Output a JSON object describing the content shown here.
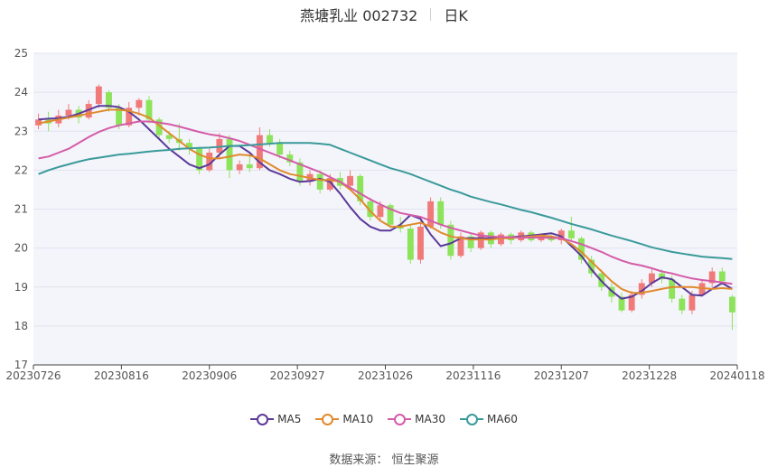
{
  "header": {
    "title": "燕塘乳业 002732",
    "period": "日K"
  },
  "legend": {
    "items": [
      {
        "label": "MA5",
        "color": "#5b3a9a"
      },
      {
        "label": "MA10",
        "color": "#e08a2c"
      },
      {
        "label": "MA30",
        "color": "#d45ca8"
      },
      {
        "label": "MA60",
        "color": "#3a9a9a"
      }
    ]
  },
  "footer": {
    "source": "数据来源：  恒生聚源"
  },
  "colors": {
    "up": "#f07a7a",
    "down": "#8de35a",
    "plot_bg": "#f4f5fb",
    "grid": "#e0e3ee"
  },
  "chart_data": {
    "type": "candlestick",
    "ylim": [
      17,
      25
    ],
    "yticks": [
      "25",
      "24",
      "23",
      "22",
      "21",
      "20",
      "19",
      "18",
      "17"
    ],
    "xticks": [
      "20230726",
      "20230816",
      "20230906",
      "20230927",
      "20231026",
      "20231116",
      "20231207",
      "20231228",
      "20240118"
    ],
    "ma_series": [
      {
        "name": "MA5",
        "values": [
          23.3,
          23.32,
          23.33,
          23.37,
          23.45,
          23.55,
          23.65,
          23.65,
          23.62,
          23.5,
          23.3,
          23.05,
          22.8,
          22.55,
          22.35,
          22.15,
          22.05,
          22.15,
          22.4,
          22.62,
          22.62,
          22.45,
          22.2,
          22.0,
          21.9,
          21.78,
          21.7,
          21.72,
          21.78,
          21.7,
          21.4,
          21.05,
          20.75,
          20.55,
          20.45,
          20.45,
          20.6,
          20.85,
          20.75,
          20.35,
          20.05,
          20.12,
          20.25,
          20.25,
          20.25,
          20.25,
          20.28,
          20.28,
          20.3,
          20.32,
          20.35,
          20.38,
          20.3,
          20.05,
          19.8,
          19.45,
          19.15,
          18.9,
          18.7,
          18.75,
          18.9,
          19.1,
          19.25,
          19.2,
          19.0,
          18.8,
          18.78,
          18.95,
          19.1,
          18.95
        ]
      },
      {
        "name": "MA10",
        "values": [
          23.2,
          23.25,
          23.3,
          23.35,
          23.4,
          23.45,
          23.5,
          23.55,
          23.55,
          23.52,
          23.45,
          23.35,
          23.15,
          22.95,
          22.75,
          22.55,
          22.4,
          22.3,
          22.3,
          22.35,
          22.4,
          22.38,
          22.3,
          22.15,
          22.0,
          21.9,
          21.85,
          21.8,
          21.75,
          21.75,
          21.7,
          21.5,
          21.25,
          20.95,
          20.7,
          20.55,
          20.55,
          20.6,
          20.65,
          20.55,
          20.4,
          20.3,
          20.25,
          20.22,
          20.22,
          20.22,
          20.25,
          20.25,
          20.28,
          20.3,
          20.32,
          20.3,
          20.25,
          20.1,
          19.9,
          19.65,
          19.4,
          19.15,
          18.95,
          18.85,
          18.85,
          18.9,
          18.95,
          19.0,
          19.0,
          19.0,
          18.97,
          18.95,
          18.97,
          18.95
        ]
      },
      {
        "name": "MA30",
        "values": [
          22.3,
          22.35,
          22.45,
          22.55,
          22.7,
          22.85,
          22.98,
          23.08,
          23.15,
          23.2,
          23.25,
          23.25,
          23.22,
          23.18,
          23.12,
          23.05,
          22.98,
          22.92,
          22.88,
          22.82,
          22.75,
          22.65,
          22.55,
          22.45,
          22.35,
          22.25,
          22.15,
          22.05,
          21.95,
          21.82,
          21.7,
          21.55,
          21.4,
          21.25,
          21.12,
          21.0,
          20.9,
          20.85,
          20.8,
          20.7,
          20.6,
          20.52,
          20.45,
          20.38,
          20.32,
          20.3,
          20.28,
          20.28,
          20.27,
          20.27,
          20.27,
          20.26,
          20.25,
          20.18,
          20.1,
          20.0,
          19.9,
          19.78,
          19.68,
          19.6,
          19.55,
          19.48,
          19.4,
          19.35,
          19.28,
          19.22,
          19.18,
          19.15,
          19.12,
          19.08
        ]
      },
      {
        "name": "MA60",
        "values": [
          21.9,
          22.0,
          22.08,
          22.15,
          22.22,
          22.28,
          22.32,
          22.36,
          22.4,
          22.42,
          22.45,
          22.48,
          22.5,
          22.52,
          22.55,
          22.56,
          22.57,
          22.58,
          22.6,
          22.62,
          22.63,
          22.64,
          22.66,
          22.68,
          22.7,
          22.7,
          22.7,
          22.7,
          22.68,
          22.65,
          22.55,
          22.45,
          22.35,
          22.25,
          22.15,
          22.05,
          21.98,
          21.9,
          21.8,
          21.7,
          21.6,
          21.5,
          21.42,
          21.32,
          21.25,
          21.18,
          21.12,
          21.05,
          20.98,
          20.92,
          20.85,
          20.78,
          20.7,
          20.62,
          20.55,
          20.48,
          20.4,
          20.32,
          20.25,
          20.18,
          20.1,
          20.02,
          19.96,
          19.9,
          19.86,
          19.82,
          19.78,
          19.76,
          19.74,
          19.72
        ]
      }
    ],
    "candles": [
      [
        23.15,
        23.3,
        23.45,
        23.05
      ],
      [
        23.3,
        23.2,
        23.5,
        23.0
      ],
      [
        23.2,
        23.4,
        23.55,
        23.1
      ],
      [
        23.4,
        23.55,
        23.7,
        23.3
      ],
      [
        23.55,
        23.35,
        23.65,
        23.2
      ],
      [
        23.35,
        23.7,
        23.8,
        23.3
      ],
      [
        23.7,
        24.15,
        24.2,
        23.6
      ],
      [
        24.0,
        23.6,
        24.05,
        23.5
      ],
      [
        23.6,
        23.15,
        23.7,
        23.05
      ],
      [
        23.15,
        23.6,
        23.75,
        23.1
      ],
      [
        23.6,
        23.8,
        23.85,
        23.4
      ],
      [
        23.8,
        23.3,
        23.9,
        23.2
      ],
      [
        23.3,
        22.9,
        23.35,
        22.8
      ],
      [
        22.9,
        22.8,
        23.0,
        22.7
      ],
      [
        22.8,
        22.7,
        23.2,
        22.5
      ],
      [
        22.7,
        22.55,
        22.8,
        22.4
      ],
      [
        22.55,
        22.0,
        22.6,
        21.9
      ],
      [
        22.0,
        22.45,
        22.55,
        21.95
      ],
      [
        22.45,
        22.8,
        22.95,
        22.3
      ],
      [
        22.8,
        22.0,
        22.9,
        21.8
      ],
      [
        22.0,
        22.15,
        22.25,
        21.9
      ],
      [
        22.15,
        22.05,
        22.4,
        21.95
      ],
      [
        22.05,
        22.9,
        23.1,
        22.0
      ],
      [
        22.9,
        22.7,
        23.05,
        22.6
      ],
      [
        22.7,
        22.4,
        22.8,
        22.3
      ],
      [
        22.4,
        22.2,
        22.5,
        22.1
      ],
      [
        22.2,
        21.7,
        22.3,
        21.6
      ],
      [
        21.7,
        21.9,
        22.0,
        21.6
      ],
      [
        21.9,
        21.5,
        22.0,
        21.4
      ],
      [
        21.5,
        21.8,
        21.9,
        21.45
      ],
      [
        21.8,
        21.6,
        21.95,
        21.5
      ],
      [
        21.6,
        21.85,
        22.0,
        21.55
      ],
      [
        21.85,
        21.2,
        21.9,
        21.1
      ],
      [
        21.2,
        20.8,
        21.3,
        20.7
      ],
      [
        20.8,
        21.1,
        21.2,
        20.7
      ],
      [
        21.1,
        20.6,
        21.15,
        20.5
      ],
      [
        20.6,
        20.5,
        20.8,
        20.4
      ],
      [
        20.5,
        19.7,
        20.6,
        19.6
      ],
      [
        19.7,
        20.55,
        20.7,
        19.6
      ],
      [
        20.55,
        21.2,
        21.3,
        20.5
      ],
      [
        21.2,
        20.6,
        21.3,
        20.5
      ],
      [
        20.6,
        19.8,
        20.7,
        19.7
      ],
      [
        19.8,
        20.3,
        20.4,
        19.75
      ],
      [
        20.3,
        20.0,
        20.4,
        19.9
      ],
      [
        20.0,
        20.4,
        20.45,
        19.95
      ],
      [
        20.4,
        20.1,
        20.45,
        20.0
      ],
      [
        20.1,
        20.35,
        20.4,
        20.05
      ],
      [
        20.35,
        20.2,
        20.4,
        20.1
      ],
      [
        20.2,
        20.4,
        20.45,
        20.15
      ],
      [
        20.4,
        20.2,
        20.45,
        20.15
      ],
      [
        20.2,
        20.3,
        20.35,
        20.15
      ],
      [
        20.3,
        20.2,
        20.35,
        20.15
      ],
      [
        20.2,
        20.45,
        20.5,
        20.1
      ],
      [
        20.45,
        20.25,
        20.8,
        20.2
      ],
      [
        20.25,
        19.7,
        20.3,
        19.6
      ],
      [
        19.7,
        19.35,
        19.8,
        19.25
      ],
      [
        19.35,
        19.0,
        19.45,
        18.9
      ],
      [
        19.0,
        18.75,
        19.1,
        18.6
      ],
      [
        18.75,
        18.4,
        18.85,
        18.35
      ],
      [
        18.4,
        18.8,
        18.9,
        18.35
      ],
      [
        18.8,
        19.1,
        19.2,
        18.7
      ],
      [
        19.1,
        19.35,
        19.45,
        19.0
      ],
      [
        19.35,
        19.2,
        19.45,
        19.1
      ],
      [
        19.2,
        18.7,
        19.3,
        18.6
      ],
      [
        18.7,
        18.4,
        18.8,
        18.3
      ],
      [
        18.4,
        18.8,
        18.9,
        18.3
      ],
      [
        18.8,
        19.1,
        19.2,
        18.75
      ],
      [
        19.1,
        19.4,
        19.5,
        19.0
      ],
      [
        19.4,
        19.15,
        19.5,
        19.05
      ],
      [
        18.75,
        18.35,
        18.8,
        17.9
      ]
    ]
  }
}
